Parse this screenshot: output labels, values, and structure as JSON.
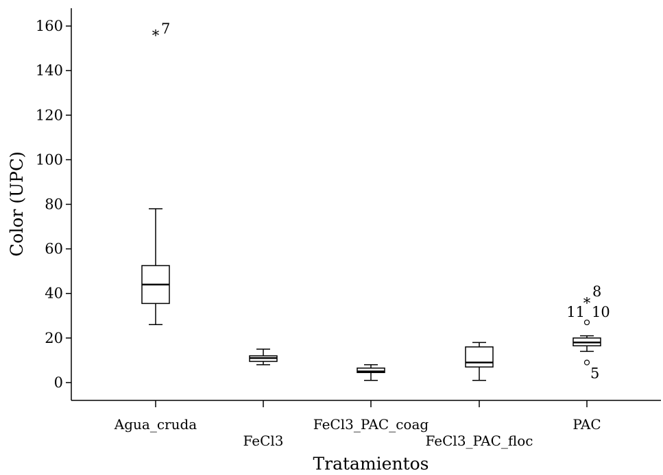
{
  "chart_data": {
    "type": "boxplot",
    "xlabel": "Tratamientos",
    "ylabel": "Color (UPC)",
    "ylim": [
      -8,
      168
    ],
    "yticks": [
      0,
      20,
      40,
      60,
      80,
      100,
      120,
      140,
      160
    ],
    "grid": false,
    "categories": [
      "Agua_cruda",
      "FeCl3",
      "FeCl3_PAC_coag",
      "FeCl3_PAC_floc",
      "PAC"
    ],
    "boxes": [
      {
        "name": "Agua_cruda",
        "whisker_low": 26,
        "q1": 35.5,
        "median": 44,
        "q3": 52.5,
        "whisker_high": 78,
        "outliers": [
          {
            "value": 156,
            "marker": "extreme",
            "label": "7"
          }
        ]
      },
      {
        "name": "FeCl3",
        "whisker_low": 8,
        "q1": 9.5,
        "median": 11,
        "q3": 12,
        "whisker_high": 15,
        "outliers": []
      },
      {
        "name": "FeCl3_PAC_coag",
        "whisker_low": 1,
        "q1": 4.5,
        "median": 5,
        "q3": 6.5,
        "whisker_high": 8,
        "outliers": []
      },
      {
        "name": "FeCl3_PAC_floc",
        "whisker_low": 1,
        "q1": 7,
        "median": 9,
        "q3": 16,
        "whisker_high": 18,
        "outliers": []
      },
      {
        "name": "PAC",
        "whisker_low": 14,
        "q1": 16.5,
        "median": 18,
        "q3": 20,
        "whisker_high": 21,
        "outliers": [
          {
            "value": 36,
            "marker": "extreme",
            "label": "8"
          },
          {
            "value": 27,
            "marker": "outlier",
            "label": "11"
          },
          {
            "value": 27,
            "marker": "outlier",
            "label": "10"
          },
          {
            "value": 9,
            "marker": "outlier",
            "label": "5"
          }
        ]
      }
    ]
  }
}
